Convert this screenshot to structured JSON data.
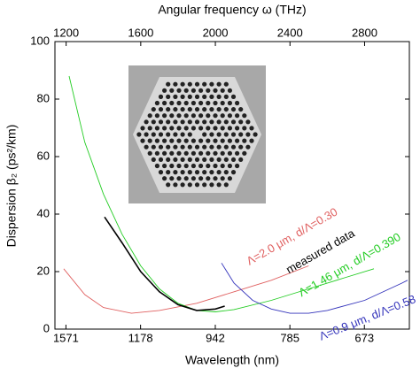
{
  "chart_data": {
    "type": "line",
    "xlabel_top": "Angular frequency ω (THz)",
    "xlabel": "Wavelength (nm)",
    "ylabel": "Dispersion β₂ (ps²/km)",
    "xlim": [
      1140,
      3040
    ],
    "xticks": [
      1200,
      1600,
      2000,
      2400,
      2800
    ],
    "wavelength_ticks": [
      1571,
      1178,
      942,
      785,
      673
    ],
    "ylim": [
      0,
      100
    ],
    "yticks": [
      0,
      20,
      40,
      60,
      80,
      100
    ],
    "series": [
      {
        "name": "Λ=2.0 μm, d/Λ=0.30",
        "color": "#e06060",
        "x": [
          1187,
          1300,
          1400,
          1550,
          1700,
          1900,
          2100,
          2300,
          2500
        ],
        "values": [
          21,
          12,
          7.5,
          5.5,
          6.5,
          9,
          13,
          17,
          22
        ]
      },
      {
        "name": "Λ=1.46 μm, d/Λ=0.390",
        "color": "#22cc22",
        "x": [
          1216,
          1300,
          1400,
          1500,
          1600,
          1700,
          1800,
          1900,
          2000,
          2100,
          2300,
          2500,
          2700,
          2850
        ],
        "values": [
          88,
          65,
          47,
          33,
          22,
          14,
          9,
          6.5,
          6,
          6.8,
          10,
          14,
          18,
          21
        ]
      },
      {
        "name": "measured data",
        "color": "#000000",
        "x": [
          1406,
          1500,
          1600,
          1700,
          1800,
          1900,
          2000,
          2050
        ],
        "values": [
          39,
          30,
          20,
          13,
          8.5,
          6.5,
          7,
          8
        ]
      },
      {
        "name": "Λ=0.9 μm, d/Λ=0.58",
        "color": "#3333bb",
        "x": [
          2033,
          2100,
          2200,
          2300,
          2400,
          2500,
          2600,
          2800,
          3000,
          3030
        ],
        "values": [
          23,
          16,
          10,
          7,
          5.5,
          5.5,
          6.5,
          10,
          16,
          17
        ]
      }
    ]
  }
}
